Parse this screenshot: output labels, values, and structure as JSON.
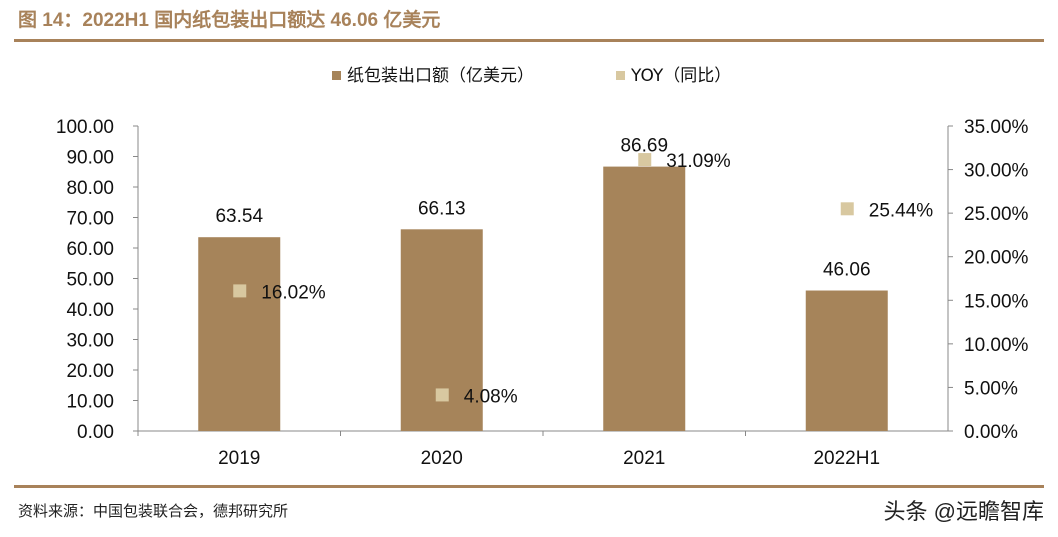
{
  "title": "图 14：2022H1 国内纸包装出口额达 46.06 亿美元",
  "source": "资料来源：中国包装联合会，德邦研究所",
  "watermark": "头条 @远瞻智库",
  "chart_data": {
    "type": "bar",
    "categories": [
      "2019",
      "2020",
      "2021",
      "2022H1"
    ],
    "series": [
      {
        "name": "纸包装出口额（亿美元）",
        "type": "bar",
        "axis": "left",
        "color": "#a6845a",
        "values": [
          63.54,
          66.13,
          86.69,
          46.06
        ],
        "labels": [
          "63.54",
          "66.13",
          "86.69",
          "46.06"
        ]
      },
      {
        "name": "YOY（同比）",
        "type": "scatter",
        "axis": "right",
        "color": "#d8c8a0",
        "values": [
          16.02,
          4.08,
          31.09,
          25.44
        ],
        "labels": [
          "16.02%",
          "4.08%",
          "31.09%",
          "25.44%"
        ]
      }
    ],
    "ylim": [
      0,
      100
    ],
    "y2lim": [
      0,
      35
    ],
    "yticks": [
      "0.00",
      "10.00",
      "20.00",
      "30.00",
      "40.00",
      "50.00",
      "60.00",
      "70.00",
      "80.00",
      "90.00",
      "100.00"
    ],
    "y2ticks": [
      "0.00%",
      "5.00%",
      "10.00%",
      "15.00%",
      "20.00%",
      "25.00%",
      "30.00%",
      "35.00%"
    ],
    "legend": "top",
    "grid": false
  }
}
